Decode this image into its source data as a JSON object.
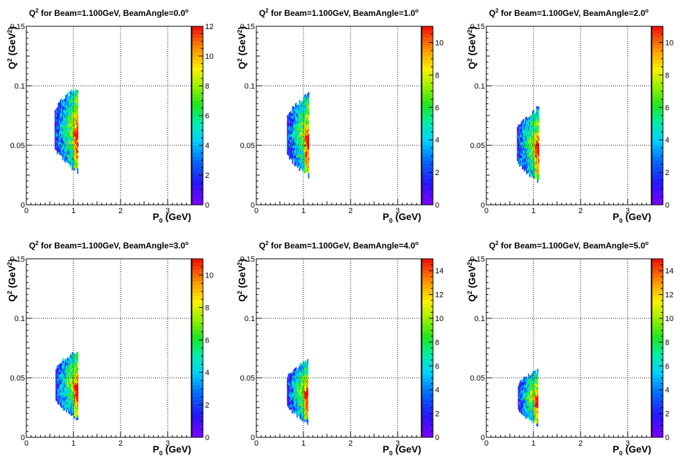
{
  "chart_data": [
    {
      "type": "heatmap",
      "title": "Q",
      "title_exp": "2",
      "title_rest": " for Beam=1.100GeV, BeamAngle=0.0",
      "title_deg": "o",
      "xlabel": "P",
      "xlabel_sub": "0",
      "xlabel_rest": " (GeV)",
      "ylabel": "Q",
      "ylabel_exp": "2",
      "ylabel_rest": " (GeV",
      "ylabel_unit_exp": "2",
      "ylabel_close": ")",
      "xlim": [
        0,
        3.5
      ],
      "ylim": [
        0,
        0.15
      ],
      "x_ticks": [
        "0",
        "1",
        "2",
        "3"
      ],
      "y_ticks": [
        "0",
        "0.05",
        "0.1",
        "0.15"
      ],
      "zlim": [
        0,
        12
      ],
      "z_ticks": [
        "0",
        "2",
        "4",
        "6",
        "8",
        "10",
        "12"
      ],
      "grid": true,
      "region": {
        "x_min": 0.6,
        "x_max": 1.1,
        "y_top": 0.105,
        "y_bottom": 0.03,
        "y_center": 0.063
      }
    },
    {
      "type": "heatmap",
      "title": "Q",
      "title_exp": "2",
      "title_rest": " for Beam=1.100GeV, BeamAngle=1.0",
      "title_deg": "o",
      "xlabel": "P",
      "xlabel_sub": "0",
      "xlabel_rest": " (GeV)",
      "ylabel": "Q",
      "ylabel_exp": "2",
      "ylabel_rest": " (GeV",
      "ylabel_unit_exp": "2",
      "ylabel_close": ")",
      "xlim": [
        0,
        3.5
      ],
      "ylim": [
        0,
        0.15
      ],
      "x_ticks": [
        "0",
        "1",
        "2",
        "3"
      ],
      "y_ticks": [
        "0",
        "0.05",
        "0.1",
        "0.15"
      ],
      "zlim": [
        0,
        11
      ],
      "z_ticks": [
        "0",
        "2",
        "4",
        "6",
        "8",
        "10"
      ],
      "grid": true,
      "region": {
        "x_min": 0.65,
        "x_max": 1.12,
        "y_top": 0.096,
        "y_bottom": 0.024,
        "y_center": 0.058
      }
    },
    {
      "type": "heatmap",
      "title": "Q",
      "title_exp": "2",
      "title_rest": " for Beam=1.100GeV, BeamAngle=2.0",
      "title_deg": "o",
      "xlabel": "P",
      "xlabel_sub": "0",
      "xlabel_rest": " (GeV)",
      "ylabel": "Q",
      "ylabel_exp": "2",
      "ylabel_rest": " (GeV",
      "ylabel_unit_exp": "2",
      "ylabel_close": ")",
      "xlim": [
        0,
        3.5
      ],
      "ylim": [
        0,
        0.15
      ],
      "x_ticks": [
        "0",
        "1",
        "2",
        "3"
      ],
      "y_ticks": [
        "0",
        "0.05",
        "0.1",
        "0.15"
      ],
      "zlim": [
        0,
        11
      ],
      "z_ticks": [
        "0",
        "2",
        "4",
        "6",
        "8",
        "10"
      ],
      "grid": true,
      "region": {
        "x_min": 0.65,
        "x_max": 1.12,
        "y_top": 0.085,
        "y_bottom": 0.02,
        "y_center": 0.05
      }
    },
    {
      "type": "heatmap",
      "title": "Q",
      "title_exp": "2",
      "title_rest": " for Beam=1.100GeV, BeamAngle=3.0",
      "title_deg": "o",
      "xlabel": "P",
      "xlabel_sub": "0",
      "xlabel_rest": " (GeV)",
      "ylabel": "Q",
      "ylabel_exp": "2",
      "ylabel_rest": " (GeV",
      "ylabel_unit_exp": "2",
      "ylabel_close": ")",
      "xlim": [
        0,
        3.5
      ],
      "ylim": [
        0,
        0.15
      ],
      "x_ticks": [
        "0",
        "1",
        "2",
        "3"
      ],
      "y_ticks": [
        "0",
        "0.05",
        "0.1",
        "0.15"
      ],
      "zlim": [
        0,
        11
      ],
      "z_ticks": [
        "0",
        "2",
        "4",
        "6",
        "8",
        "10"
      ],
      "grid": true,
      "region": {
        "x_min": 0.62,
        "x_max": 1.1,
        "y_top": 0.075,
        "y_bottom": 0.014,
        "y_center": 0.044
      }
    },
    {
      "type": "heatmap",
      "title": "Q",
      "title_exp": "2",
      "title_rest": " for Beam=1.100GeV, BeamAngle=4.0",
      "title_deg": "o",
      "xlabel": "P",
      "xlabel_sub": "0",
      "xlabel_rest": " (GeV)",
      "ylabel": "Q",
      "ylabel_exp": "2",
      "ylabel_rest": " (GeV",
      "ylabel_unit_exp": "2",
      "ylabel_close": ")",
      "xlim": [
        0,
        3.5
      ],
      "ylim": [
        0,
        0.15
      ],
      "x_ticks": [
        "0",
        "1",
        "2",
        "3"
      ],
      "y_ticks": [
        "0",
        "0.05",
        "0.1",
        "0.15"
      ],
      "zlim": [
        0,
        15
      ],
      "z_ticks": [
        "0",
        "2",
        "4",
        "6",
        "8",
        "10",
        "12",
        "14"
      ],
      "grid": true,
      "region": {
        "x_min": 0.65,
        "x_max": 1.1,
        "y_top": 0.065,
        "y_bottom": 0.01,
        "y_center": 0.038
      }
    },
    {
      "type": "heatmap",
      "title": "Q",
      "title_exp": "2",
      "title_rest": " for Beam=1.100GeV, BeamAngle=5.0",
      "title_deg": "o",
      "xlabel": "P",
      "xlabel_sub": "0",
      "xlabel_rest": " (GeV)",
      "ylabel": "Q",
      "ylabel_exp": "2",
      "ylabel_rest": " (GeV",
      "ylabel_unit_exp": "2",
      "ylabel_close": ")",
      "xlim": [
        0,
        3.5
      ],
      "ylim": [
        0,
        0.15
      ],
      "x_ticks": [
        "0",
        "1",
        "2",
        "3"
      ],
      "y_ticks": [
        "0",
        "0.05",
        "0.1",
        "0.15"
      ],
      "zlim": [
        0,
        15
      ],
      "z_ticks": [
        "0",
        "2",
        "4",
        "6",
        "8",
        "10",
        "12",
        "14"
      ],
      "grid": true,
      "region": {
        "x_min": 0.67,
        "x_max": 1.1,
        "y_top": 0.056,
        "y_bottom": 0.008,
        "y_center": 0.033
      }
    }
  ]
}
